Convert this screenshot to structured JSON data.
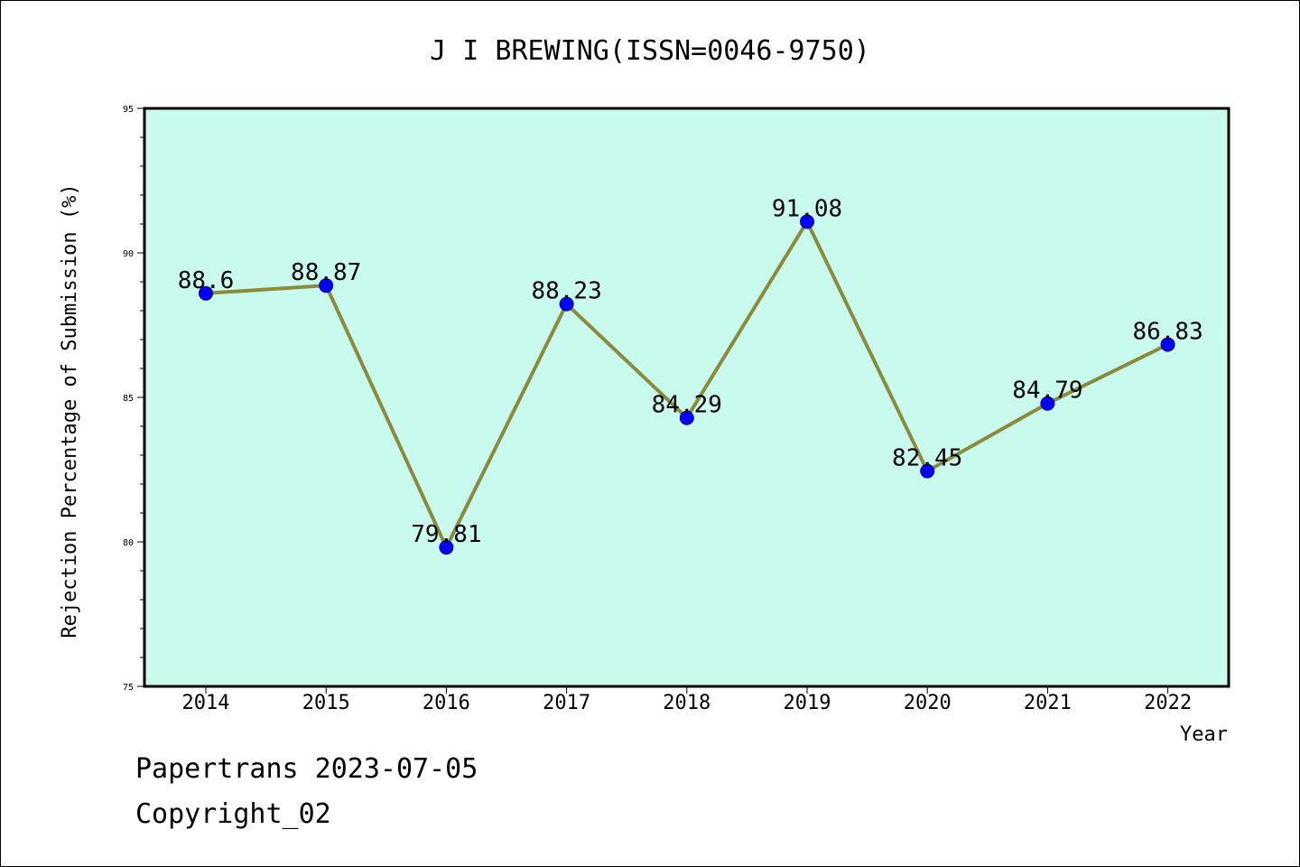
{
  "chart_data": {
    "type": "line",
    "title": "J I BREWING(ISSN=0046-9750)",
    "xlabel": "Year",
    "ylabel": "Rejection Percentage of Submission (%)",
    "categories": [
      "2014",
      "2015",
      "2016",
      "2017",
      "2018",
      "2019",
      "2020",
      "2021",
      "2022"
    ],
    "series": [
      {
        "values": [
          88.6,
          88.87,
          79.81,
          88.23,
          84.29,
          91.08,
          82.45,
          84.79,
          86.83
        ],
        "data_labels": [
          "88.6",
          "88.87",
          "79.81",
          "88.23",
          "84.29",
          "91.08",
          "82.45",
          "84.79",
          "86.83"
        ]
      }
    ],
    "ylim": [
      75,
      95
    ],
    "y_major_ticks": [
      75,
      80,
      85,
      90,
      95
    ],
    "y_minor_step": 1,
    "grid": false,
    "legend": "none",
    "colors": {
      "plot_background": "#c8fbee",
      "line": "#8b8b3a",
      "marker": "#0000ff",
      "axes": "#000000"
    }
  },
  "footer": {
    "line1": "Papertrans 2023-07-05",
    "line2": "Copyright_02"
  }
}
